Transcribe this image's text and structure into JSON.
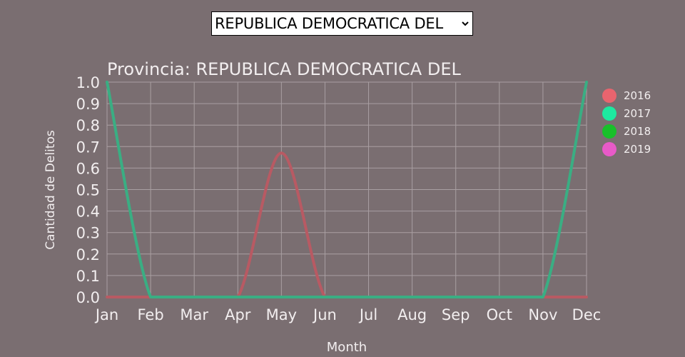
{
  "filter": {
    "selected": "REPUBLICA DEMOCRATICA DEL",
    "icon": "chevron-down-icon"
  },
  "colors": {
    "background": "#7a6e71",
    "grid": "#a99fa2",
    "text": "#f2eeef"
  },
  "chart_data": {
    "type": "line",
    "title": "Provincia: REPUBLICA DEMOCRATICA DEL",
    "xlabel": "Month",
    "ylabel": "Cantidad de Delitos",
    "categories": [
      "Jan",
      "Feb",
      "Mar",
      "Apr",
      "May",
      "Jun",
      "Jul",
      "Aug",
      "Sep",
      "Oct",
      "Nov",
      "Dec"
    ],
    "ylim": [
      0,
      1
    ],
    "yticks": [
      "0.0",
      "0.1",
      "0.2",
      "0.3",
      "0.4",
      "0.5",
      "0.6",
      "0.7",
      "0.8",
      "0.9",
      "1.0"
    ],
    "grid": true,
    "legend_position": "right",
    "series": [
      {
        "name": "2016",
        "color": "#e8646e",
        "line_color": "#b85a63",
        "values": [
          0,
          0,
          0,
          0,
          0.67,
          0,
          0,
          0,
          0,
          0,
          0,
          0
        ]
      },
      {
        "name": "2017",
        "color": "#1de9a0",
        "line_color": "#3aae83",
        "values": [
          1,
          0,
          0,
          0,
          0,
          0,
          0,
          0,
          0,
          0,
          0,
          1
        ]
      },
      {
        "name": "2018",
        "color": "#18c02a",
        "line_color": "#5a8f63",
        "values": [
          0,
          0,
          0,
          0,
          0,
          0,
          0,
          0,
          0,
          0,
          0,
          0
        ]
      },
      {
        "name": "2019",
        "color": "#e85ac8",
        "line_color": "#a7677f",
        "values": [
          0,
          0,
          0,
          0,
          0,
          0,
          0,
          0,
          0,
          0,
          0,
          0
        ]
      }
    ]
  }
}
